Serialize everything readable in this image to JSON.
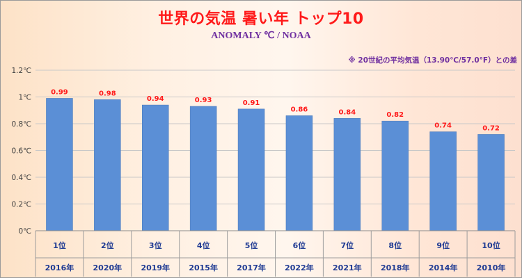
{
  "chart_data": {
    "type": "bar",
    "title": "世界の気温 暑い年 トップ10",
    "subtitle": "ANOMALY ℃ / NOAA",
    "note": "※ 20世紀の平均気温（13.90℃/57.0°F）との差",
    "categories": [
      "1位",
      "2位",
      "3位",
      "4位",
      "5位",
      "6位",
      "7位",
      "8位",
      "9位",
      "10位"
    ],
    "years": [
      "2016年",
      "2020年",
      "2019年",
      "2015年",
      "2017年",
      "2022年",
      "2021年",
      "2018年",
      "2014年",
      "2010年"
    ],
    "values": [
      0.99,
      0.98,
      0.94,
      0.93,
      0.91,
      0.86,
      0.84,
      0.82,
      0.74,
      0.72
    ],
    "value_labels": [
      "0.99",
      "0.98",
      "0.94",
      "0.93",
      "0.91",
      "0.86",
      "0.84",
      "0.82",
      "0.74",
      "0.72"
    ],
    "ylim": [
      0,
      1.2
    ],
    "yticks": [
      0,
      0.2,
      0.4,
      0.6,
      0.8,
      1,
      1.2
    ],
    "ytick_labels": [
      "0℃",
      "0.2℃",
      "0.4℃",
      "0.6℃",
      "0.8℃",
      "1℃",
      "1.2℃"
    ],
    "grid": true,
    "colors": {
      "bar": "#5b8fd6",
      "bar_border": "#4a78b8",
      "title": "#ff1a1a",
      "subtitle": "#7030a0",
      "data_label": "#ff1a1a",
      "x_label": "#1f3a93",
      "grid": "#c8c8c8"
    }
  }
}
